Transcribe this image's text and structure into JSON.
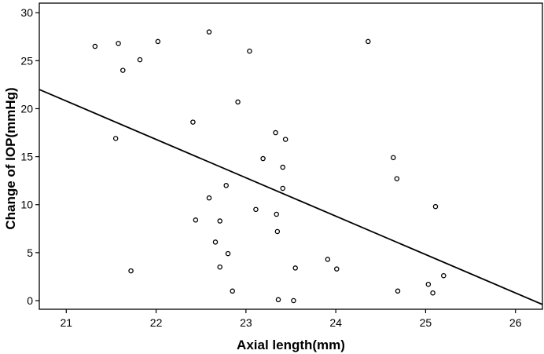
{
  "chart_data": {
    "type": "scatter",
    "title": "",
    "xlabel": "Axial length(mm)",
    "ylabel": "Change of IOP(mmHg)",
    "xlim": [
      20.7,
      26.3
    ],
    "ylim": [
      -0.9,
      31
    ],
    "x_ticks": [
      21,
      22,
      23,
      24,
      25,
      26
    ],
    "y_ticks": [
      0,
      5,
      10,
      15,
      20,
      25,
      30
    ],
    "x_tick_labels": [
      "21",
      "22",
      "23",
      "24",
      "25",
      "26"
    ],
    "y_tick_labels": [
      "0",
      "5",
      "10",
      "15",
      "20",
      "25",
      "30"
    ],
    "grid": false,
    "legend": "none",
    "points": [
      {
        "x": 21.32,
        "y": 26.5
      },
      {
        "x": 21.58,
        "y": 26.8
      },
      {
        "x": 21.63,
        "y": 24.0
      },
      {
        "x": 21.82,
        "y": 25.1
      },
      {
        "x": 22.02,
        "y": 27.0
      },
      {
        "x": 22.59,
        "y": 28.0
      },
      {
        "x": 23.04,
        "y": 26.0
      },
      {
        "x": 24.36,
        "y": 27.0
      },
      {
        "x": 22.91,
        "y": 20.7
      },
      {
        "x": 22.41,
        "y": 18.6
      },
      {
        "x": 21.55,
        "y": 16.9
      },
      {
        "x": 23.33,
        "y": 17.5
      },
      {
        "x": 23.44,
        "y": 16.8
      },
      {
        "x": 23.19,
        "y": 14.8
      },
      {
        "x": 23.41,
        "y": 13.9
      },
      {
        "x": 24.64,
        "y": 14.9
      },
      {
        "x": 24.68,
        "y": 12.7
      },
      {
        "x": 22.78,
        "y": 12.0
      },
      {
        "x": 23.41,
        "y": 11.7
      },
      {
        "x": 22.59,
        "y": 10.7
      },
      {
        "x": 23.11,
        "y": 9.5
      },
      {
        "x": 23.34,
        "y": 9.0
      },
      {
        "x": 25.11,
        "y": 9.8
      },
      {
        "x": 22.44,
        "y": 8.4
      },
      {
        "x": 22.71,
        "y": 8.3
      },
      {
        "x": 23.35,
        "y": 7.2
      },
      {
        "x": 22.66,
        "y": 6.1
      },
      {
        "x": 22.8,
        "y": 4.9
      },
      {
        "x": 23.91,
        "y": 4.3
      },
      {
        "x": 21.72,
        "y": 3.1
      },
      {
        "x": 22.71,
        "y": 3.5
      },
      {
        "x": 23.55,
        "y": 3.4
      },
      {
        "x": 24.01,
        "y": 3.3
      },
      {
        "x": 25.2,
        "y": 2.6
      },
      {
        "x": 25.03,
        "y": 1.7
      },
      {
        "x": 25.08,
        "y": 0.8
      },
      {
        "x": 24.69,
        "y": 1.0
      },
      {
        "x": 22.85,
        "y": 1.0
      },
      {
        "x": 23.36,
        "y": 0.1
      },
      {
        "x": 23.53,
        "y": 0.0
      }
    ],
    "fit_line": {
      "x": [
        20.7,
        26.3
      ],
      "y": [
        22.0,
        -0.4
      ]
    }
  }
}
